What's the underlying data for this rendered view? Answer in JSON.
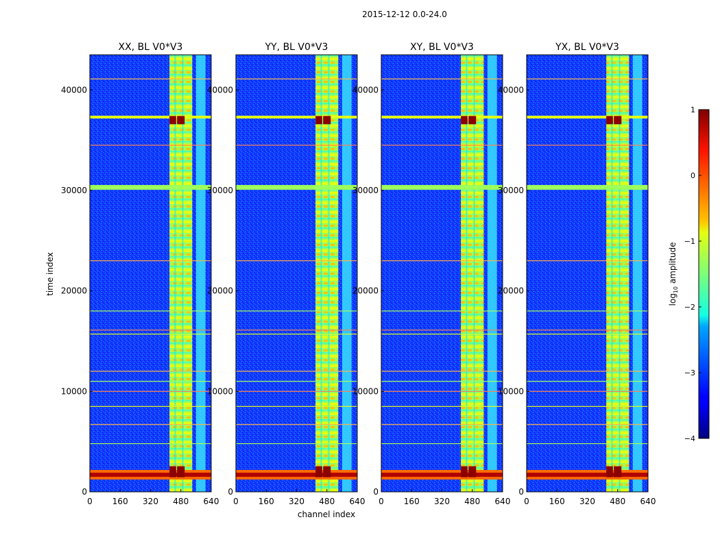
{
  "suptitle": "2015-12-12 0.0-24.0",
  "ylabel": "time index",
  "xlabel": "channel index",
  "colorbar": {
    "label": "log",
    "label_sub": "10",
    "label_rest": " amplitude",
    "ticks": [
      1,
      0,
      -1,
      -2,
      -3,
      -4
    ],
    "tick_labels": [
      "1",
      "0",
      "−1",
      "−2",
      "−3",
      "−4"
    ],
    "range": [
      -4,
      1
    ],
    "colormap": "jet"
  },
  "chart_data": [
    {
      "type": "heatmap",
      "title": "XX, BL V0*V3",
      "xlabel": "channel index",
      "ylabel": "time index",
      "xlim": [
        0,
        640
      ],
      "ylim": [
        0,
        43500
      ],
      "xticks": [
        0,
        160,
        320,
        480,
        640
      ],
      "yticks": [
        0,
        10000,
        20000,
        30000,
        40000
      ],
      "colorbar_range": [
        -4,
        1
      ],
      "horizontal_features": [
        1700,
        4800,
        6700,
        8500,
        10000,
        11000,
        12000,
        15700,
        16100,
        18000,
        23000,
        30300,
        34500,
        37300,
        41100
      ],
      "vertical_bands": [
        [
          420,
          540
        ],
        [
          560,
          610
        ]
      ]
    },
    {
      "type": "heatmap",
      "title": "YY, BL V0*V3",
      "xlabel": "channel index",
      "ylabel": "time index",
      "xlim": [
        0,
        640
      ],
      "ylim": [
        0,
        43500
      ],
      "xticks": [
        0,
        160,
        320,
        480,
        640
      ],
      "yticks": [
        0,
        10000,
        20000,
        30000,
        40000
      ],
      "colorbar_range": [
        -4,
        1
      ],
      "horizontal_features": [
        1700,
        4800,
        6700,
        8500,
        10000,
        11000,
        12000,
        15700,
        16100,
        18000,
        23000,
        30300,
        34500,
        37300,
        41100
      ],
      "vertical_bands": [
        [
          420,
          540
        ],
        [
          560,
          610
        ]
      ]
    },
    {
      "type": "heatmap",
      "title": "XY, BL V0*V3",
      "xlabel": "channel index",
      "ylabel": "time index",
      "xlim": [
        0,
        640
      ],
      "ylim": [
        0,
        43500
      ],
      "xticks": [
        0,
        160,
        320,
        480,
        640
      ],
      "yticks": [
        0,
        10000,
        20000,
        30000,
        40000
      ],
      "colorbar_range": [
        -4,
        1
      ],
      "horizontal_features": [
        1700,
        4800,
        6700,
        8500,
        10000,
        11000,
        12000,
        15700,
        16100,
        18000,
        23000,
        30300,
        34500,
        37300,
        41100
      ],
      "vertical_bands": [
        [
          420,
          540
        ],
        [
          560,
          610
        ]
      ]
    },
    {
      "type": "heatmap",
      "title": "YX, BL V0*V3",
      "xlabel": "channel index",
      "ylabel": "time index",
      "xlim": [
        0,
        640
      ],
      "ylim": [
        0,
        43500
      ],
      "xticks": [
        0,
        160,
        320,
        480,
        640
      ],
      "yticks": [
        0,
        10000,
        20000,
        30000,
        40000
      ],
      "colorbar_range": [
        -4,
        1
      ],
      "horizontal_features": [
        1700,
        4800,
        6700,
        8500,
        10000,
        11000,
        12000,
        15700,
        16100,
        18000,
        23000,
        30300,
        34500,
        37300,
        41100
      ],
      "vertical_bands": [
        [
          420,
          540
        ],
        [
          560,
          610
        ]
      ]
    }
  ]
}
